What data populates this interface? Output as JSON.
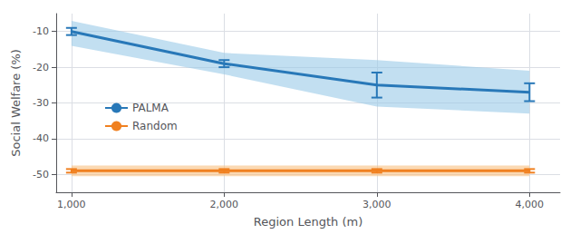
{
  "chart_data": {
    "type": "line",
    "xlabel": "Region Length (m)",
    "ylabel": "Social Welfare (%)",
    "x": [
      1000,
      2000,
      3000,
      4000
    ],
    "series": [
      {
        "name": "PALMA",
        "color": "#2878b8",
        "values": [
          -10,
          -19,
          -25,
          -27
        ],
        "error_low": [
          1.0,
          1.0,
          3.5,
          2.5
        ],
        "error_high": [
          1.0,
          1.0,
          3.5,
          2.5
        ],
        "band_lower": [
          -14,
          -22,
          -31,
          -33
        ],
        "band_upper": [
          -7,
          -16,
          -18,
          -21
        ],
        "band_color": "#99c9e8"
      },
      {
        "name": "Random",
        "color": "#f08020",
        "values": [
          -49,
          -49,
          -49,
          -49
        ],
        "error_low": [
          0.5,
          0.5,
          0.5,
          0.5
        ],
        "error_high": [
          0.5,
          0.5,
          0.5,
          0.5
        ],
        "band_lower": [
          -50.5,
          -50.5,
          -50.5,
          -50.5
        ],
        "band_upper": [
          -47.5,
          -47.5,
          -47.5,
          -47.5
        ],
        "band_color": "#f8c080"
      }
    ],
    "xlim": [
      900,
      4200
    ],
    "xticks": [
      1000,
      2000,
      3000,
      4000
    ],
    "ylim": [
      -55,
      -5
    ],
    "yticks": [
      -10,
      -20,
      -30,
      -40,
      -50
    ],
    "grid": true,
    "legend": "left"
  }
}
